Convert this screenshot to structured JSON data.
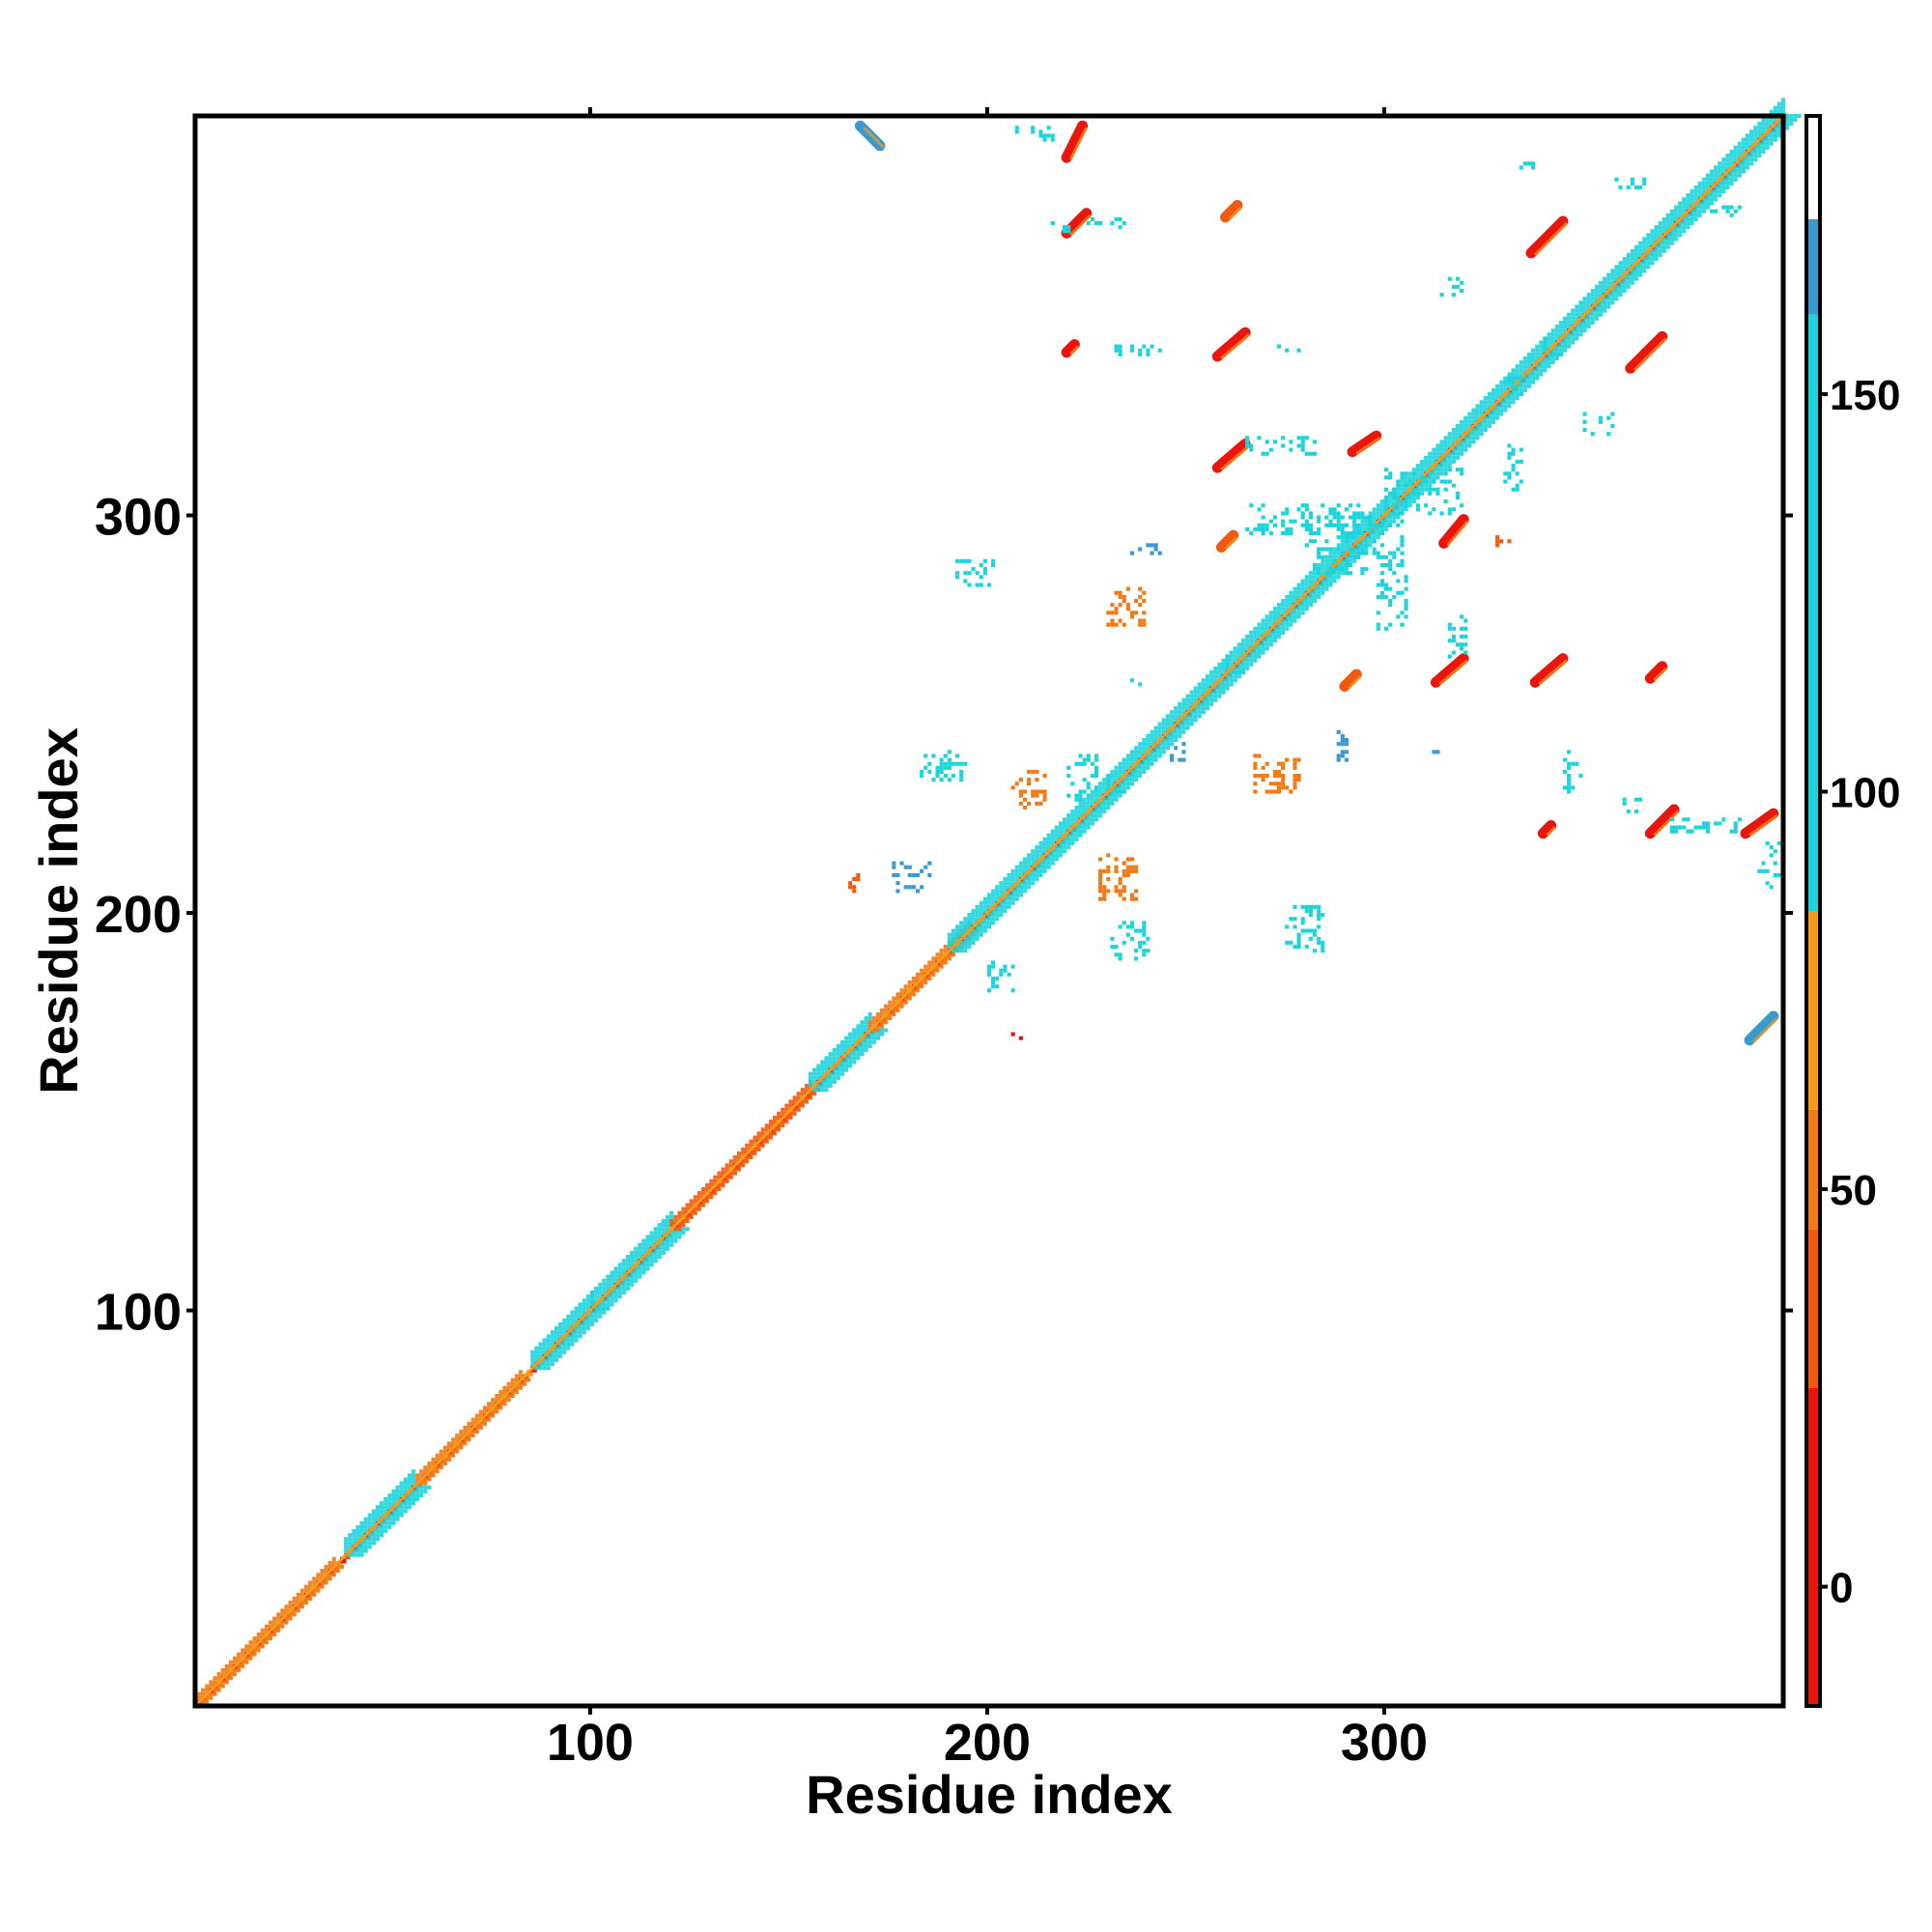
{
  "chart_data": {
    "type": "heatmap",
    "title": "",
    "xlabel": "Residue index",
    "ylabel": "Residue index",
    "xlim": [
      1,
      400
    ],
    "ylim": [
      1,
      400
    ],
    "x_ticks": [
      100,
      200,
      300
    ],
    "y_ticks": [
      100,
      200,
      300
    ],
    "grid": false,
    "colorbar": {
      "ticks": [
        0,
        50,
        100,
        150
      ],
      "range": [
        -15,
        185
      ],
      "bands": [
        {
          "from": -15,
          "to": 25,
          "color": "#e8160c"
        },
        {
          "from": 25,
          "to": 45,
          "color": "#f05a10"
        },
        {
          "from": 45,
          "to": 60,
          "color": "#f07a16"
        },
        {
          "from": 60,
          "to": 85,
          "color": "#f59a1a"
        },
        {
          "from": 85,
          "to": 160,
          "color": "#1ed4dc"
        },
        {
          "from": 160,
          "to": 172,
          "color": "#3a9ad0"
        },
        {
          "from": 172,
          "to": 185,
          "color": "#ffffff"
        }
      ]
    },
    "diagonal_blocks": [
      {
        "start": 1,
        "end": 35,
        "color": "#f07a16"
      },
      {
        "start": 38,
        "end": 55,
        "color": "#1ed4dc"
      },
      {
        "start": 56,
        "end": 82,
        "color": "#f07a16"
      },
      {
        "start": 85,
        "end": 100,
        "color": "#1ed4dc"
      },
      {
        "start": 100,
        "end": 120,
        "color": "#1ed4dc"
      },
      {
        "start": 120,
        "end": 155,
        "color": "#f05a10"
      },
      {
        "start": 155,
        "end": 170,
        "color": "#1ed4dc"
      },
      {
        "start": 170,
        "end": 195,
        "color": "#f07a16"
      },
      {
        "start": 190,
        "end": 230,
        "color": "#1ed4dc"
      },
      {
        "start": 230,
        "end": 260,
        "color": "#1ed4dc"
      },
      {
        "start": 260,
        "end": 300,
        "color": "#1ed4dc"
      },
      {
        "start": 300,
        "end": 340,
        "color": "#1ed4dc"
      },
      {
        "start": 340,
        "end": 400,
        "color": "#1ed4dc"
      }
    ],
    "contact_strands": [
      {
        "x1": 220,
        "y1": 390,
        "x2": 224,
        "y2": 398,
        "color": "#e8160c"
      },
      {
        "x1": 220,
        "y1": 371,
        "x2": 225,
        "y2": 376,
        "color": "#e8160c"
      },
      {
        "x1": 168,
        "y1": 398,
        "x2": 173,
        "y2": 393,
        "color": "#3a9ad0"
      },
      {
        "x1": 258,
        "y1": 340,
        "x2": 265,
        "y2": 346,
        "color": "#e8160c"
      },
      {
        "x1": 258,
        "y1": 312,
        "x2": 265,
        "y2": 318,
        "color": "#e8160c"
      },
      {
        "x1": 292,
        "y1": 316,
        "x2": 298,
        "y2": 320,
        "color": "#e8160c"
      },
      {
        "x1": 315,
        "y1": 293,
        "x2": 320,
        "y2": 299,
        "color": "#e8160c"
      },
      {
        "x1": 313,
        "y1": 258,
        "x2": 320,
        "y2": 264,
        "color": "#e8160c"
      },
      {
        "x1": 338,
        "y1": 258,
        "x2": 345,
        "y2": 264,
        "color": "#e8160c"
      },
      {
        "x1": 337,
        "y1": 366,
        "x2": 345,
        "y2": 374,
        "color": "#e8160c"
      },
      {
        "x1": 362,
        "y1": 337,
        "x2": 370,
        "y2": 345,
        "color": "#e8160c"
      },
      {
        "x1": 367,
        "y1": 220,
        "x2": 373,
        "y2": 226,
        "color": "#e8160c"
      },
      {
        "x1": 391,
        "y1": 220,
        "x2": 398,
        "y2": 225,
        "color": "#e8160c"
      },
      {
        "x1": 392,
        "y1": 168,
        "x2": 398,
        "y2": 174,
        "color": "#3a9ad0"
      },
      {
        "x1": 367,
        "y1": 259,
        "x2": 370,
        "y2": 262,
        "color": "#e8160c"
      },
      {
        "x1": 260,
        "y1": 375,
        "x2": 263,
        "y2": 378,
        "color": "#f05a10"
      },
      {
        "x1": 259,
        "y1": 292,
        "x2": 262,
        "y2": 295,
        "color": "#f05a10"
      },
      {
        "x1": 290,
        "y1": 257,
        "x2": 293,
        "y2": 260,
        "color": "#f05a10"
      },
      {
        "x1": 340,
        "y1": 220,
        "x2": 342,
        "y2": 222,
        "color": "#e8160c"
      },
      {
        "x1": 220,
        "y1": 341,
        "x2": 222,
        "y2": 343,
        "color": "#e8160c"
      }
    ],
    "contact_clusters": [
      {
        "x": 192,
        "y": 282,
        "w": 10,
        "h": 7,
        "color": "#1ed4dc"
      },
      {
        "x": 183,
        "y": 233,
        "w": 12,
        "h": 8,
        "color": "#1ed4dc"
      },
      {
        "x": 205,
        "y": 226,
        "w": 10,
        "h": 10,
        "color": "#f07a16"
      },
      {
        "x": 220,
        "y": 228,
        "w": 8,
        "h": 12,
        "color": "#1ed4dc"
      },
      {
        "x": 176,
        "y": 205,
        "w": 10,
        "h": 8,
        "color": "#3a9ad0"
      },
      {
        "x": 165,
        "y": 205,
        "w": 3,
        "h": 5,
        "color": "#f05a10"
      },
      {
        "x": 200,
        "y": 180,
        "w": 8,
        "h": 8,
        "color": "#1ed4dc"
      },
      {
        "x": 205,
        "y": 168,
        "w": 5,
        "h": 2,
        "color": "#e8160c"
      },
      {
        "x": 228,
        "y": 203,
        "w": 10,
        "h": 12,
        "color": "#f07a16"
      },
      {
        "x": 231,
        "y": 188,
        "w": 10,
        "h": 10,
        "color": "#1ed4dc"
      },
      {
        "x": 230,
        "y": 272,
        "w": 10,
        "h": 10,
        "color": "#f07a16"
      },
      {
        "x": 236,
        "y": 290,
        "w": 8,
        "h": 3,
        "color": "#3a9ad0"
      },
      {
        "x": 235,
        "y": 257,
        "w": 4,
        "h": 3,
        "color": "#1ed4dc"
      },
      {
        "x": 246,
        "y": 238,
        "w": 4,
        "h": 5,
        "color": "#3a9ad0"
      },
      {
        "x": 267,
        "y": 230,
        "w": 12,
        "h": 10,
        "color": "#f07a16"
      },
      {
        "x": 275,
        "y": 190,
        "w": 10,
        "h": 12,
        "color": "#1ed4dc"
      },
      {
        "x": 288,
        "y": 238,
        "w": 3,
        "h": 8,
        "color": "#3a9ad0"
      },
      {
        "x": 280,
        "y": 285,
        "w": 25,
        "h": 15,
        "color": "#1ed4dc"
      },
      {
        "x": 265,
        "y": 295,
        "w": 30,
        "h": 8,
        "color": "#1ed4dc"
      },
      {
        "x": 298,
        "y": 270,
        "w": 8,
        "h": 15,
        "color": "#1ed4dc"
      },
      {
        "x": 300,
        "y": 300,
        "w": 20,
        "h": 12,
        "color": "#1ed4dc"
      },
      {
        "x": 265,
        "y": 315,
        "w": 20,
        "h": 5,
        "color": "#1ed4dc"
      },
      {
        "x": 312,
        "y": 238,
        "w": 3,
        "h": 5,
        "color": "#3a9ad0"
      },
      {
        "x": 316,
        "y": 264,
        "w": 5,
        "h": 12,
        "color": "#1ed4dc"
      },
      {
        "x": 330,
        "y": 306,
        "w": 5,
        "h": 12,
        "color": "#1ed4dc"
      },
      {
        "x": 328,
        "y": 292,
        "w": 4,
        "h": 6,
        "color": "#f05a10"
      },
      {
        "x": 345,
        "y": 230,
        "w": 5,
        "h": 12,
        "color": "#1ed4dc"
      },
      {
        "x": 360,
        "y": 225,
        "w": 5,
        "h": 5,
        "color": "#1ed4dc"
      },
      {
        "x": 372,
        "y": 220,
        "w": 18,
        "h": 4,
        "color": "#1ed4dc"
      },
      {
        "x": 394,
        "y": 206,
        "w": 6,
        "h": 12,
        "color": "#1ed4dc"
      },
      {
        "x": 314,
        "y": 355,
        "w": 6,
        "h": 6,
        "color": "#1ed4dc"
      },
      {
        "x": 350,
        "y": 320,
        "w": 8,
        "h": 6,
        "color": "#1ed4dc"
      },
      {
        "x": 330,
        "y": 330,
        "w": 5,
        "h": 5,
        "color": "#1ed4dc"
      },
      {
        "x": 205,
        "y": 394,
        "w": 12,
        "h": 4,
        "color": "#1ed4dc"
      },
      {
        "x": 215,
        "y": 371,
        "w": 6,
        "h": 3,
        "color": "#1ed4dc"
      },
      {
        "x": 225,
        "y": 372,
        "w": 12,
        "h": 3,
        "color": "#1ed4dc"
      },
      {
        "x": 232,
        "y": 340,
        "w": 12,
        "h": 3,
        "color": "#1ed4dc"
      },
      {
        "x": 273,
        "y": 340,
        "w": 6,
        "h": 3,
        "color": "#1ed4dc"
      },
      {
        "x": 380,
        "y": 375,
        "w": 10,
        "h": 3,
        "color": "#1ed4dc"
      },
      {
        "x": 358,
        "y": 382,
        "w": 8,
        "h": 3,
        "color": "#1ed4dc"
      },
      {
        "x": 334,
        "y": 386,
        "w": 5,
        "h": 3,
        "color": "#1ed4dc"
      }
    ]
  }
}
